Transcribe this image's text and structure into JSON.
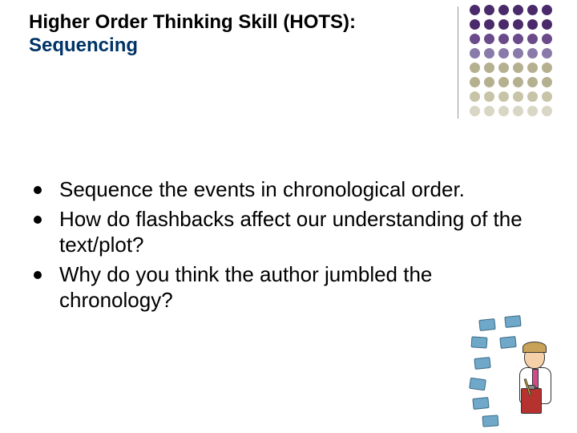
{
  "title": {
    "line1": "Higher Order Thinking Skill (HOTS):",
    "line2": "Sequencing"
  },
  "bullets": [
    "Sequence the events in chronological order.",
    "How do flashbacks affect our understanding of the text/plot?",
    "Why do you think the author jumbled the chronology?"
  ],
  "decoration": {
    "dot_colors_by_row": [
      "#4a2a6a",
      "#4a2a6a",
      "#6a4a8a",
      "#8a7aaa",
      "#b5b090",
      "#b5b090",
      "#c8c4a8",
      "#d8d6c4"
    ],
    "cols": 6,
    "rows": 8
  },
  "colors": {
    "title_accent": "#003366",
    "background": "#ffffff",
    "bullet": "#000000"
  }
}
